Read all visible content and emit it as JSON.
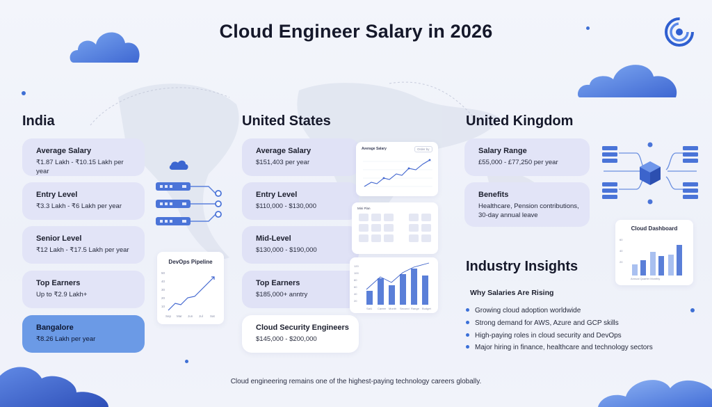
{
  "title": "Cloud Engineer Salary in 2026",
  "colors": {
    "accent": "#3a6fd8",
    "card": "#e2e4f7",
    "highlight_card": "#6b9ae6",
    "cloud": "#4f7fe0"
  },
  "india": {
    "heading": "India",
    "cards": [
      {
        "label": "Average Salary",
        "value": "₹1.87 Lakh - ₹10.15 Lakh per year"
      },
      {
        "label": "Entry Level",
        "value": "₹3.3 Lakh - ₹6 Lakh per year"
      },
      {
        "label": "Senior Level",
        "value": "₹12 Lakh - ₹17.5 Lakh per year"
      },
      {
        "label": "Top Earners",
        "value": "Up to ₹2.9 Lakh+"
      },
      {
        "label": "Bangalore",
        "value": "₹8.26 Lakh per year"
      }
    ]
  },
  "us": {
    "heading": "United States",
    "cards": [
      {
        "label": "Average Salary",
        "value": "$151,403 per year"
      },
      {
        "label": "Entry Level",
        "value": "$110,000 - $130,000"
      },
      {
        "label": "Mid-Level",
        "value": "$130,000 - $190,000"
      },
      {
        "label": "Top Earners",
        "value": "$185,000+ anntry"
      },
      {
        "label": "Cloud Security Engineers",
        "value": "$145,000 - $200,000"
      }
    ]
  },
  "uk": {
    "heading": "United Kingdom",
    "cards": [
      {
        "label": "Salary Range",
        "value": "£55,000 - £77,250 per year"
      },
      {
        "label": "Benefits",
        "value": "Healthcare, Pension contributions, 30-day annual leave"
      }
    ]
  },
  "insights": {
    "heading": "Industry Insights",
    "subheading": "Why Salaries Are Rising",
    "bullets": [
      "Growing cloud adoption worldwide",
      "Strong demand for AWS, Azure and GCP skills",
      "High-paying roles in cloud security and DevOps",
      "Major hiring in finance, healthcare and technology sectors"
    ]
  },
  "devops_panel": {
    "title": "DevOps Pipeline",
    "y_ticks": [
      "50",
      "40",
      "30",
      "20",
      "10"
    ],
    "x_ticks": [
      "Sep",
      "Mar",
      "Jun",
      "Jul",
      "Sat"
    ]
  },
  "avg_salary_panel": {
    "title": "Average Salary",
    "filter": "Order by"
  },
  "mini_panel": {
    "title": "Mini Plan"
  },
  "bar_panel": {
    "y_ticks": [
      "120",
      "100",
      "80",
      "60",
      "40",
      "20"
    ],
    "x_ticks": [
      "Sat1",
      "Career",
      "Month",
      "Second",
      "Range",
      "Budget"
    ]
  },
  "cloud_dashboard": {
    "title": "Cloud Dashboard",
    "y_ticks": [
      "60",
      "40",
      "20"
    ],
    "x_ticks": "Annual   Quarter   Monthly"
  },
  "footer": "Cloud engineering remains one of the highest-paying technology careers globally."
}
